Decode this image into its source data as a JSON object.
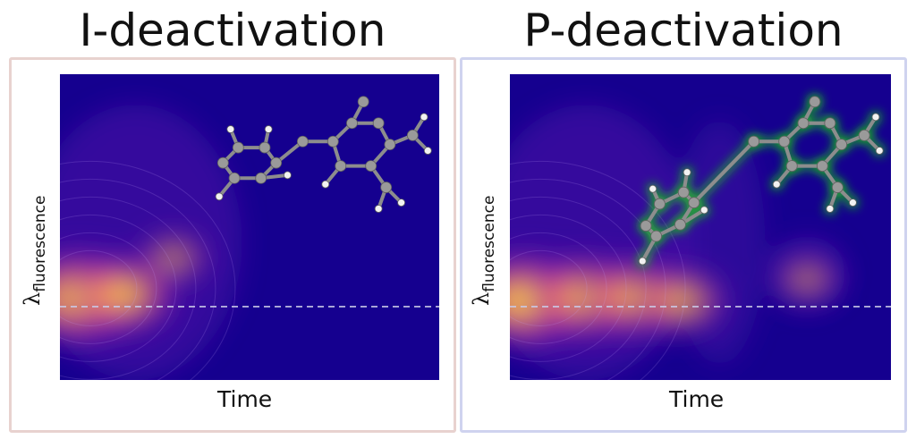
{
  "colors": {
    "background": "#15008f",
    "glow": "#22c322",
    "left_frame": "#e8d2cf",
    "right_frame": "#cfd3ef",
    "dashed": "#c9c9e6"
  },
  "panels": [
    {
      "title": "I-deactivation",
      "xlabel": "Time",
      "ylabel_symbol": "λ",
      "ylabel_sub": "fluorescence",
      "molecule_icon": "molecule-icon",
      "highlighted": false
    },
    {
      "title": "P-deactivation",
      "xlabel": "Time",
      "ylabel_symbol": "λ",
      "ylabel_sub": "fluorescence",
      "molecule_icon": "molecule-icon",
      "highlighted": true
    }
  ],
  "chart_data": [
    {
      "type": "heatmap",
      "title": "I-deactivation",
      "xlabel": "Time",
      "ylabel": "λfluorescence",
      "xlim": [
        0,
        1
      ],
      "ylim": [
        0,
        1
      ],
      "reference_line_y": 0.24,
      "colormap": "plasma",
      "intensity_peaks": [
        {
          "x": 0.05,
          "y": 0.27,
          "intensity": 1.0
        },
        {
          "x": 0.17,
          "y": 0.28,
          "intensity": 0.75
        },
        {
          "x": 0.3,
          "y": 0.4,
          "intensity": 0.35
        }
      ]
    },
    {
      "type": "heatmap",
      "title": "P-deactivation",
      "xlabel": "Time",
      "ylabel": "λfluorescence",
      "xlim": [
        0,
        1
      ],
      "ylim": [
        0,
        1
      ],
      "reference_line_y": 0.24,
      "colormap": "plasma",
      "intensity_peaks": [
        {
          "x": 0.04,
          "y": 0.26,
          "intensity": 1.0
        },
        {
          "x": 0.2,
          "y": 0.27,
          "intensity": 0.85
        },
        {
          "x": 0.33,
          "y": 0.27,
          "intensity": 0.75
        },
        {
          "x": 0.45,
          "y": 0.26,
          "intensity": 0.6
        },
        {
          "x": 0.78,
          "y": 0.33,
          "intensity": 0.3
        }
      ]
    }
  ]
}
